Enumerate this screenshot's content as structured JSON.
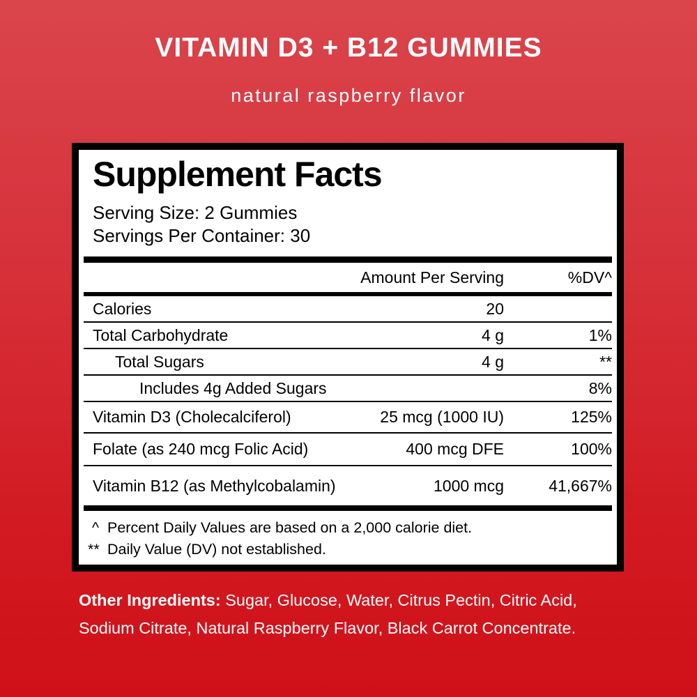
{
  "colors": {
    "background_top": "#da454c",
    "background_bottom": "#cf1018",
    "panel_background": "#ffffff",
    "panel_border": "#000000",
    "panel_text": "#000000",
    "header_text": "#ffffff"
  },
  "header": {
    "title": "VITAMIN D3 + B12 GUMMIES",
    "subtitle": "natural raspberry flavor"
  },
  "panel": {
    "title": "Supplement Facts",
    "serving_size": "Serving Size: 2 Gummies",
    "servings_per_container": "Servings Per Container: 30",
    "columns": {
      "amount": "Amount Per Serving",
      "dv": "%DV^"
    },
    "rows": [
      {
        "label": "Calories",
        "amount": "20",
        "dv": "",
        "indent": 0
      },
      {
        "label": "Total Carbohydrate",
        "amount": "4 g",
        "dv": "1%",
        "indent": 0
      },
      {
        "label": "Total Sugars",
        "amount": "4 g",
        "dv": "**",
        "indent": 1
      },
      {
        "label": "Includes 4g Added Sugars",
        "amount": "",
        "dv": "8%",
        "indent": 2
      },
      {
        "label": "Vitamin D3 (Cholecalciferol)",
        "amount": "25 mcg (1000 IU)",
        "dv": "125%",
        "indent": 0
      },
      {
        "label": "Folate (as 240 mcg Folic Acid)",
        "amount": "400 mcg DFE",
        "dv": "100%",
        "indent": 0
      },
      {
        "label": "Vitamin B12 (as Methylcobalamin)",
        "amount": "1000 mcg",
        "dv": "41,667%",
        "indent": 0
      }
    ],
    "footnotes": [
      {
        "marker": "^",
        "text": "Percent Daily Values are based on a 2,000 calorie diet."
      },
      {
        "marker": "**",
        "text": "Daily Value (DV) not established."
      }
    ]
  },
  "other_ingredients": {
    "label": "Other Ingredients:",
    "line1_rest": " Sugar, Glucose, Water, Citrus Pectin, Citric Acid,",
    "line2": "Sodium Citrate, Natural Raspberry Flavor, Black Carrot Concentrate."
  }
}
